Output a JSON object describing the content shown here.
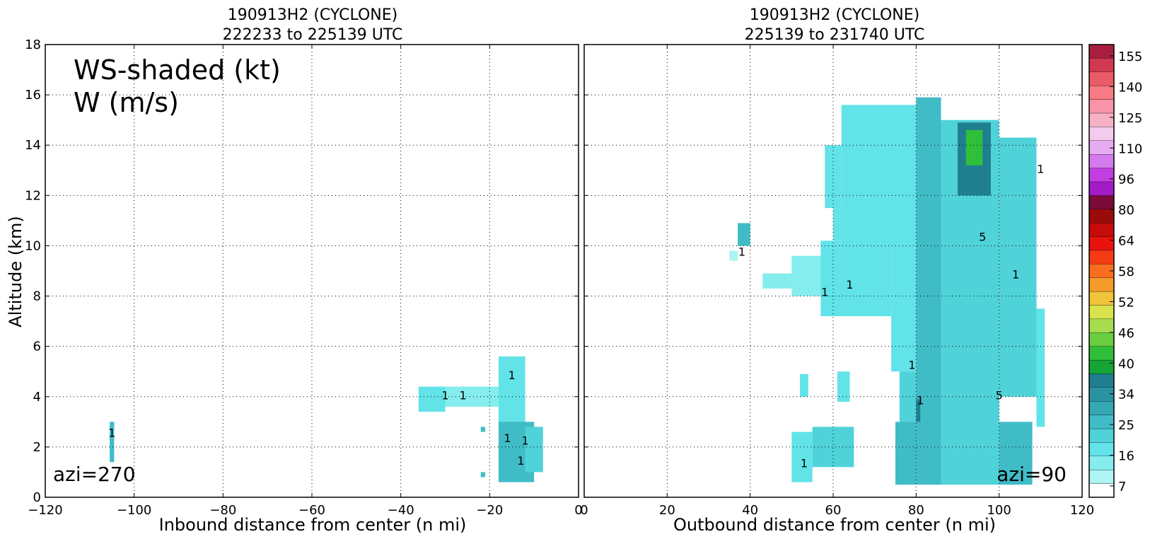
{
  "chart_data": [
    {
      "type": "heatmap",
      "title_line1": "190913H2 (CYCLONE)",
      "title_line2": "222233 to 225139 UTC",
      "xlabel": "Inbound distance from center (n mi)",
      "ylabel": "Altitude (km)",
      "xlim": [
        -120,
        0
      ],
      "ylim": [
        0,
        18
      ],
      "x_ticks": [
        "−120",
        "−100",
        "−80",
        "−60",
        "−40",
        "−20",
        "0"
      ],
      "y_ticks": [
        "0",
        "2",
        "4",
        "6",
        "8",
        "10",
        "12",
        "14",
        "16",
        "18"
      ],
      "annotation_ws": "WS-shaded (kt)",
      "annotation_w": "W (m/s)",
      "azimuth_label": "azi=270",
      "grid": true,
      "echo_regions_kt": [
        {
          "x0": -105.5,
          "x1": -104.5,
          "y0": 1.4,
          "y1": 3.0,
          "ws": 22
        },
        {
          "x0": -36,
          "x1": -30,
          "y0": 3.4,
          "y1": 4.4,
          "ws": 18
        },
        {
          "x0": -30,
          "x1": -18,
          "y0": 3.6,
          "y1": 4.4,
          "ws": 13
        },
        {
          "x0": -18,
          "x1": -12,
          "y0": 2.8,
          "y1": 5.6,
          "ws": 17
        },
        {
          "x0": -18,
          "x1": -10,
          "y0": 0.6,
          "y1": 3.0,
          "ws": 24
        },
        {
          "x0": -12,
          "x1": -8,
          "y0": 1.0,
          "y1": 2.8,
          "ws": 19
        },
        {
          "x0": -22,
          "x1": -21,
          "y0": 0.8,
          "y1": 1.0,
          "ws": 22
        },
        {
          "x0": -22,
          "x1": -21,
          "y0": 2.6,
          "y1": 2.8,
          "ws": 22
        }
      ],
      "w_contour_labels": [
        "1",
        "1",
        "1",
        "1",
        "1",
        "1",
        "1"
      ]
    },
    {
      "type": "heatmap",
      "title_line1": "190913H2 (CYCLONE)",
      "title_line2": "225139 to 231740 UTC",
      "xlabel": "Outbound distance from center (n mi)",
      "xlim": [
        0,
        120
      ],
      "ylim": [
        0,
        18
      ],
      "x_ticks": [
        "0",
        "20",
        "40",
        "60",
        "80",
        "100",
        "120"
      ],
      "azimuth_label": "azi=90",
      "grid": true,
      "echo_regions_kt": [
        {
          "x0": 37,
          "x1": 40,
          "y0": 10.0,
          "y1": 10.9,
          "ws": 23
        },
        {
          "x0": 35,
          "x1": 37,
          "y0": 9.4,
          "y1": 9.8,
          "ws": 12
        },
        {
          "x0": 43,
          "x1": 58,
          "y0": 8.3,
          "y1": 8.9,
          "ws": 14
        },
        {
          "x0": 50,
          "x1": 66,
          "y0": 8.0,
          "y1": 9.6,
          "ws": 13
        },
        {
          "x0": 57,
          "x1": 74,
          "y0": 7.2,
          "y1": 10.2,
          "ws": 16
        },
        {
          "x0": 60,
          "x1": 67,
          "y0": 10.2,
          "y1": 11.5,
          "ws": 17
        },
        {
          "x0": 58,
          "x1": 62,
          "y0": 11.5,
          "y1": 14.0,
          "ws": 18
        },
        {
          "x0": 62,
          "x1": 80,
          "y0": 10.0,
          "y1": 15.6,
          "ws": 17
        },
        {
          "x0": 74,
          "x1": 80,
          "y0": 5.0,
          "y1": 10.0,
          "ws": 17
        },
        {
          "x0": 76,
          "x1": 80,
          "y0": 1.5,
          "y1": 5.0,
          "ws": 19
        },
        {
          "x0": 75,
          "x1": 80,
          "y0": 0.5,
          "y1": 3.0,
          "ws": 24
        },
        {
          "x0": 80,
          "x1": 86,
          "y0": 0.5,
          "y1": 15.9,
          "ws": 22
        },
        {
          "x0": 86,
          "x1": 100,
          "y0": 0.5,
          "y1": 15.0,
          "ws": 21
        },
        {
          "x0": 90,
          "x1": 98,
          "y0": 12.0,
          "y1": 14.9,
          "ws": 33
        },
        {
          "x0": 92,
          "x1": 96,
          "y0": 13.2,
          "y1": 14.6,
          "ws": 38
        },
        {
          "x0": 100,
          "x1": 109,
          "y0": 4.0,
          "y1": 14.3,
          "ws": 21
        },
        {
          "x0": 100,
          "x1": 108,
          "y0": 0.5,
          "y1": 3.0,
          "ws": 23
        },
        {
          "x0": 109,
          "x1": 111,
          "y0": 2.8,
          "y1": 7.5,
          "ws": 16
        },
        {
          "x0": 80,
          "x1": 81,
          "y0": 3.0,
          "y1": 3.9,
          "ws": 33
        },
        {
          "x0": 50,
          "x1": 55,
          "y0": 0.6,
          "y1": 2.6,
          "ws": 18
        },
        {
          "x0": 55,
          "x1": 65,
          "y0": 1.2,
          "y1": 2.8,
          "ws": 21
        },
        {
          "x0": 52,
          "x1": 54,
          "y0": 4.0,
          "y1": 4.9,
          "ws": 18
        },
        {
          "x0": 61,
          "x1": 64,
          "y0": 3.8,
          "y1": 5.0,
          "ws": 17
        }
      ],
      "w_contour_labels": [
        "1",
        "1",
        "1",
        "1",
        "1",
        "1",
        "5",
        "5",
        "1",
        "1"
      ]
    }
  ],
  "colorbar": {
    "tick_labels": [
      "155",
      "140",
      "125",
      "110",
      "96",
      "80",
      "64",
      "58",
      "52",
      "46",
      "40",
      "34",
      "25",
      "16",
      "7"
    ],
    "levels": [
      7,
      10,
      13,
      16,
      19,
      22,
      25,
      28,
      31,
      34,
      37,
      40,
      43,
      46,
      49,
      52,
      55,
      58,
      61,
      64,
      72,
      80,
      88,
      96,
      103,
      110,
      118,
      125,
      133,
      140,
      148,
      155,
      165
    ],
    "colors": [
      "#ffffff",
      "#aef4f4",
      "#85eded",
      "#62e3e8",
      "#4fd2d8",
      "#40bcc7",
      "#34a8b5",
      "#2a93a2",
      "#1f7f8f",
      "#15a535",
      "#2fbf3a",
      "#6acd42",
      "#a6dc4e",
      "#d8e34e",
      "#f0c33a",
      "#f59b2a",
      "#f86e1f",
      "#f43b14",
      "#e8130e",
      "#c60b0b",
      "#9b0b0b",
      "#7a0a3a",
      "#a31bc6",
      "#c23ee0",
      "#d57aee",
      "#e6acf2",
      "#f3cbef",
      "#f6b1c6",
      "#f993a8",
      "#f77a85",
      "#ea5b67",
      "#d0394f",
      "#a81e3e"
    ]
  },
  "contour_colors": {
    "positive": "#000000",
    "negative": "#808080"
  }
}
